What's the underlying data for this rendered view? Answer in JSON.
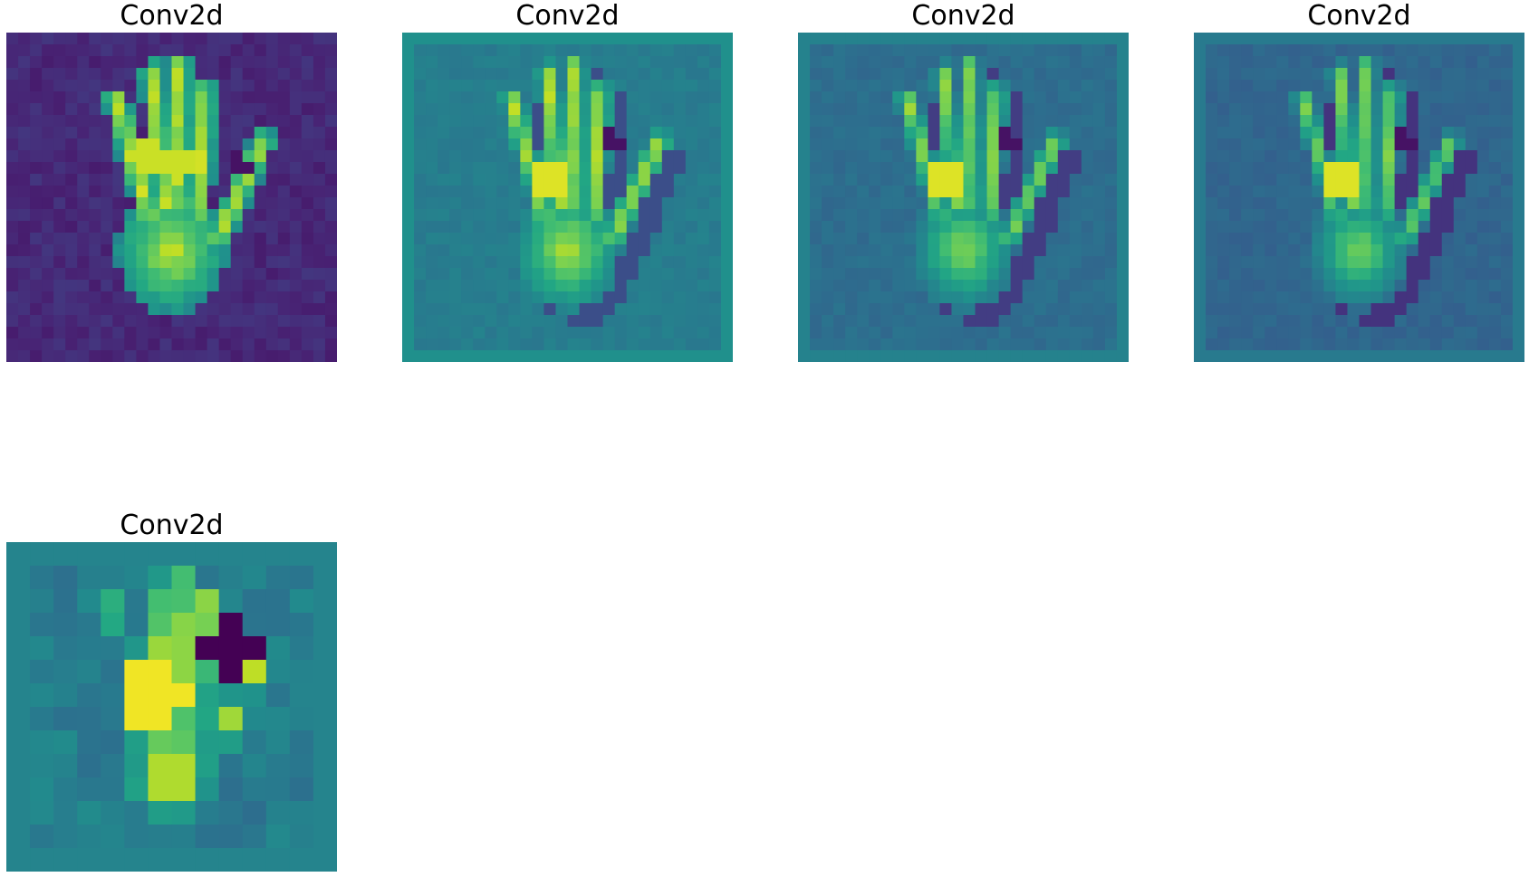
{
  "figure": {
    "panels": [
      {
        "title": "Conv2d",
        "grid": 28,
        "kind": "input-like"
      },
      {
        "title": "Conv2d",
        "grid": 28,
        "kind": "smooth-1"
      },
      {
        "title": "Conv2d",
        "grid": 28,
        "kind": "smooth-2"
      },
      {
        "title": "Conv2d",
        "grid": 28,
        "kind": "smooth-3"
      },
      {
        "title": "Conv2d",
        "grid": 14,
        "kind": "coarse"
      }
    ],
    "colormap": "viridis"
  }
}
